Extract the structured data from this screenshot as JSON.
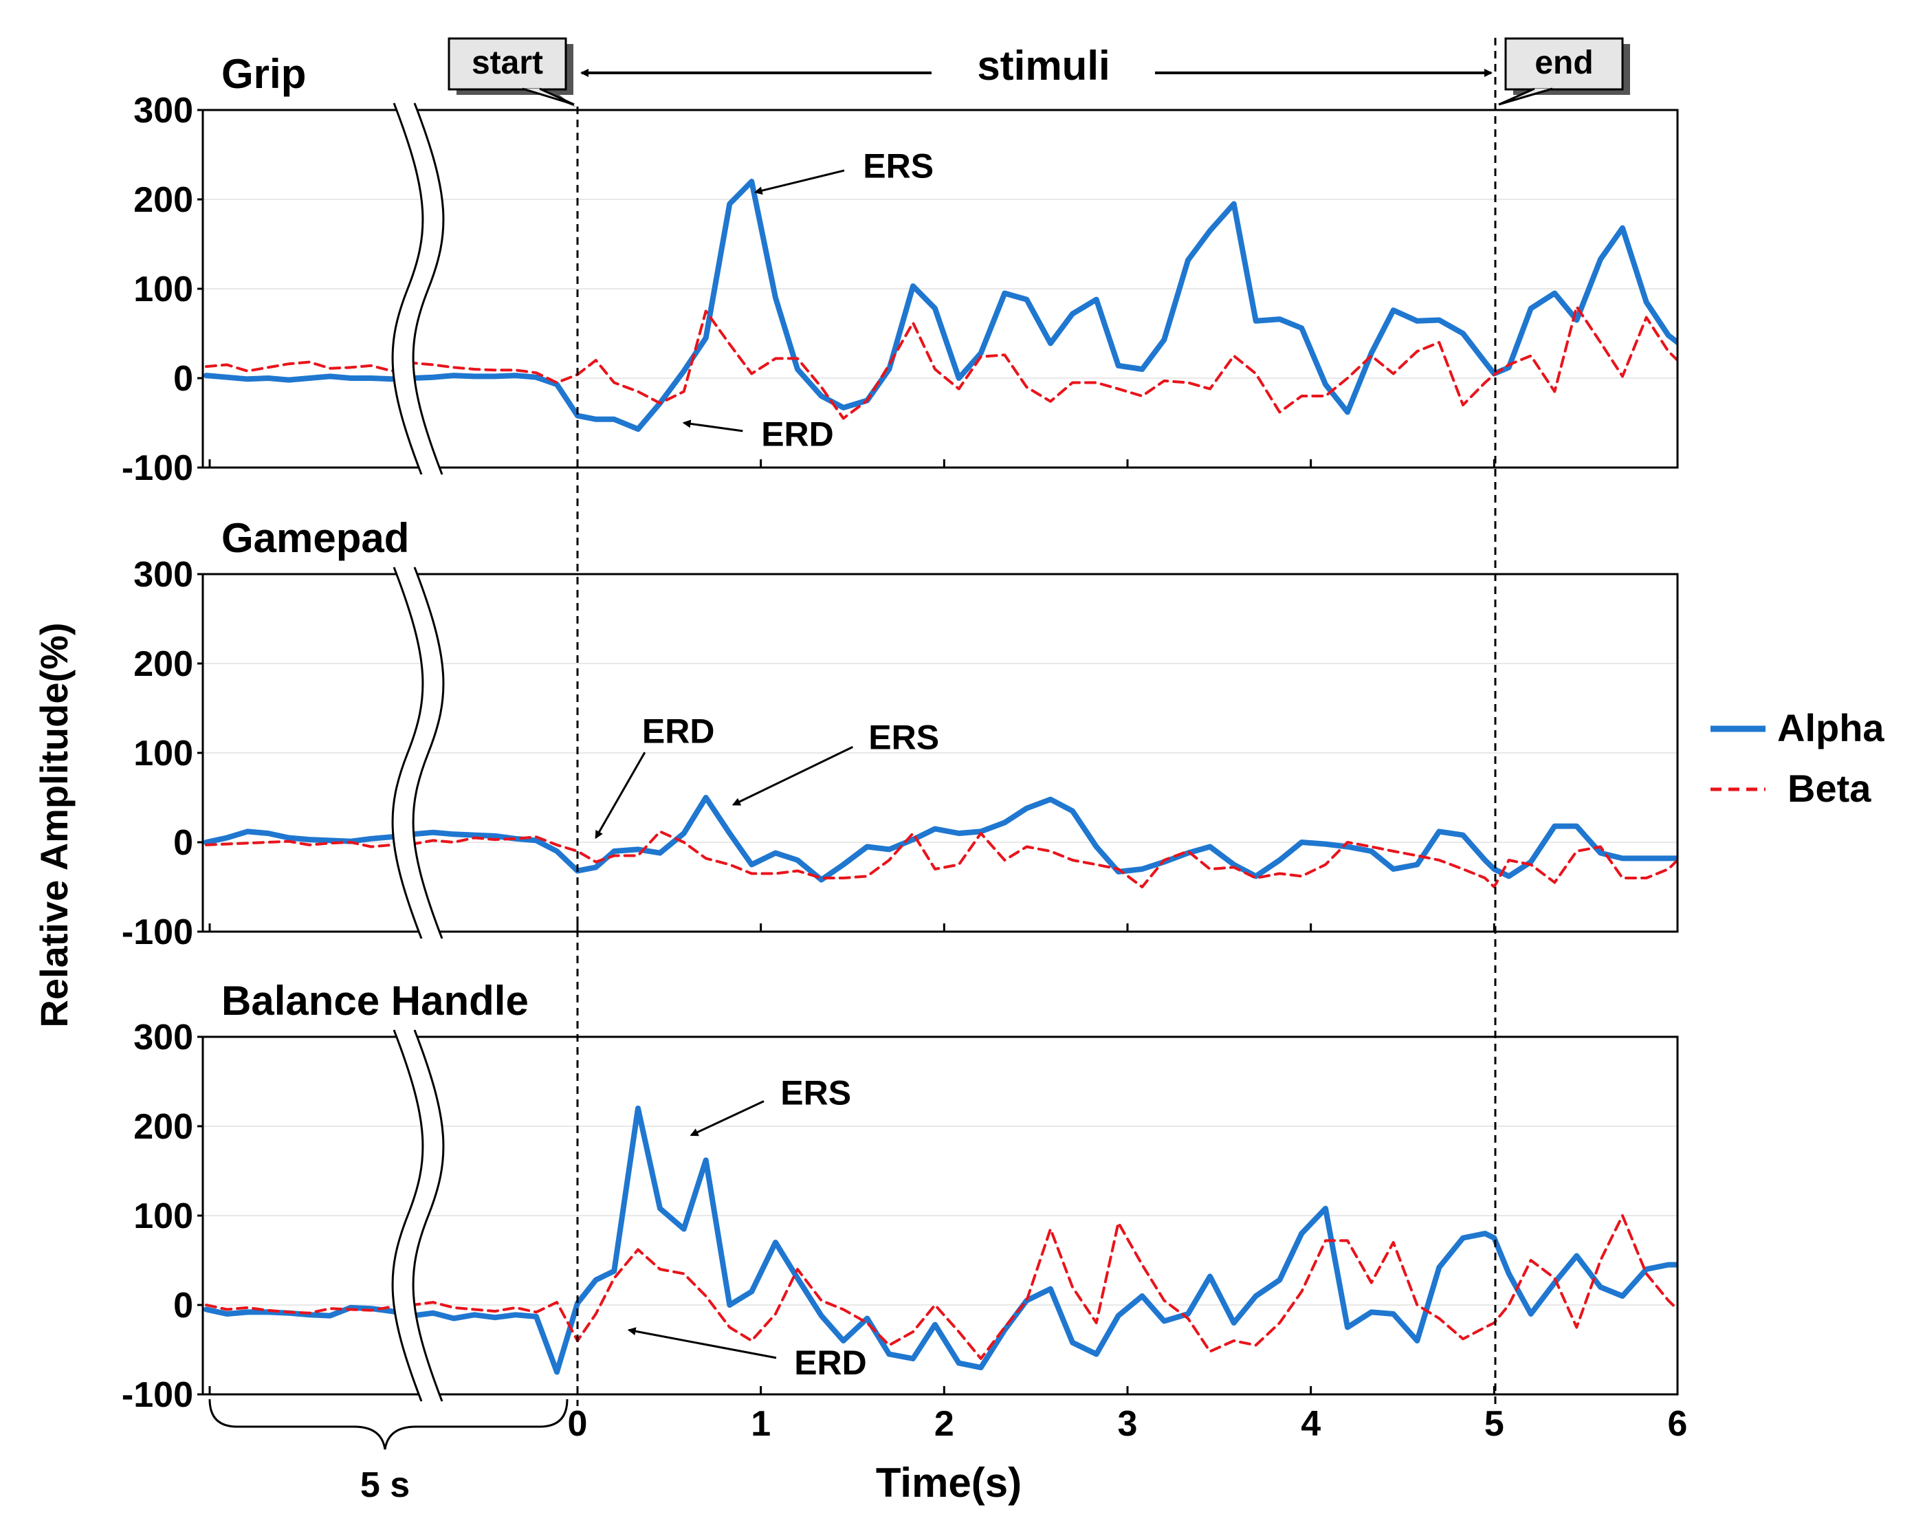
{
  "chart_data": {
    "type": "line",
    "ylabel": "Relative Amplitude(%)",
    "xlabel": "Time(s)",
    "ylim": [
      -100,
      300
    ],
    "xlim": [
      0,
      6
    ],
    "y_ticks": [
      "300",
      "200",
      "100",
      "0",
      "-100"
    ],
    "x_ticks": [
      "0",
      "1",
      "2",
      "3",
      "4",
      "5",
      "6"
    ],
    "baseline_label": "5 s",
    "events": {
      "start_label": "start",
      "end_label": "end",
      "stimuli_label": "stimuli",
      "start_time": 0,
      "end_time": 5
    },
    "legend": [
      {
        "name": "Alpha",
        "color": "#1f77d0",
        "style": "solid"
      },
      {
        "name": "Beta",
        "color": "#e8141b",
        "style": "dashed"
      }
    ],
    "panels": [
      {
        "title": "Grip",
        "annotations": [
          {
            "label": "ERS",
            "text_t": 1.75,
            "text_v": 238,
            "tip_t": 0.97,
            "tip_v": 208
          },
          {
            "label": "ERD",
            "text_t": 1.2,
            "text_v": -62,
            "tip_t": 0.58,
            "tip_v": -50
          }
        ],
        "series": [
          {
            "name": "Alpha",
            "baseline": [
              3,
              1,
              -1,
              0,
              -2,
              0,
              2,
              0,
              0,
              -1,
              0,
              1,
              3,
              2,
              2,
              3,
              1,
              -7
            ],
            "x": [
              0,
              0.1,
              0.2,
              0.33,
              0.45,
              0.58,
              0.7,
              0.83,
              0.95,
              1.08,
              1.2,
              1.33,
              1.45,
              1.58,
              1.7,
              1.83,
              1.95,
              2.08,
              2.2,
              2.33,
              2.45,
              2.58,
              2.7,
              2.83,
              2.95,
              3.08,
              3.2,
              3.33,
              3.45,
              3.58,
              3.7,
              3.83,
              3.95,
              4.08,
              4.2,
              4.33,
              4.45,
              4.58,
              4.7,
              4.83,
              4.95,
              5.0,
              5.08,
              5.2,
              5.33,
              5.45,
              5.58,
              5.7,
              5.83,
              5.95,
              6.0
            ],
            "values": [
              -42,
              -46,
              -46,
              -57,
              -28,
              8,
              45,
              195,
              220,
              90,
              10,
              -20,
              -33,
              -25,
              10,
              103,
              78,
              0,
              28,
              95,
              88,
              39,
              72,
              88,
              14,
              10,
              43,
              132,
              165,
              195,
              64,
              66,
              56,
              -7,
              -38,
              28,
              76,
              64,
              65,
              50,
              18,
              5,
              12,
              78,
              95,
              65,
              133,
              168,
              85,
              48,
              40
            ]
          },
          {
            "name": "Beta",
            "baseline": [
              13,
              15,
              8,
              12,
              16,
              18,
              11,
              12,
              14,
              8,
              17,
              15,
              12,
              10,
              9,
              9,
              6,
              -5
            ],
            "x": [
              0,
              0.1,
              0.2,
              0.33,
              0.45,
              0.58,
              0.7,
              0.83,
              0.95,
              1.08,
              1.2,
              1.33,
              1.45,
              1.58,
              1.7,
              1.83,
              1.95,
              2.08,
              2.2,
              2.33,
              2.45,
              2.58,
              2.7,
              2.83,
              2.95,
              3.08,
              3.2,
              3.33,
              3.45,
              3.58,
              3.7,
              3.83,
              3.95,
              4.08,
              4.2,
              4.33,
              4.45,
              4.58,
              4.7,
              4.83,
              4.95,
              5.0,
              5.08,
              5.2,
              5.33,
              5.45,
              5.58,
              5.7,
              5.83,
              5.95,
              6.0
            ],
            "values": [
              4,
              20,
              -5,
              -15,
              -28,
              -15,
              75,
              38,
              5,
              22,
              22,
              -10,
              -45,
              -25,
              15,
              62,
              10,
              -12,
              24,
              26,
              -10,
              -26,
              -5,
              -5,
              -12,
              -20,
              -3,
              -5,
              -12,
              25,
              5,
              -38,
              -20,
              -20,
              0,
              25,
              5,
              30,
              40,
              -30,
              -5,
              4,
              15,
              25,
              -15,
              80,
              40,
              2,
              68,
              30,
              20
            ]
          }
        ]
      },
      {
        "title": "Gamepad",
        "annotations": [
          {
            "label": "ERD",
            "text_t": 0.55,
            "text_v": 125,
            "tip_t": 0.1,
            "tip_v": 5
          },
          {
            "label": "ERS",
            "text_t": 1.78,
            "text_v": 118,
            "tip_t": 0.85,
            "tip_v": 42
          }
        ],
        "series": [
          {
            "name": "Alpha",
            "baseline": [
              0,
              5,
              12,
              10,
              5,
              3,
              2,
              1,
              4,
              6,
              9,
              11,
              9,
              8,
              7,
              4,
              2,
              -10
            ],
            "x": [
              0,
              0.1,
              0.2,
              0.33,
              0.45,
              0.58,
              0.7,
              0.83,
              0.95,
              1.08,
              1.2,
              1.33,
              1.45,
              1.58,
              1.7,
              1.83,
              1.95,
              2.08,
              2.2,
              2.33,
              2.45,
              2.58,
              2.7,
              2.83,
              2.95,
              3.08,
              3.2,
              3.33,
              3.45,
              3.58,
              3.7,
              3.83,
              3.95,
              4.08,
              4.2,
              4.33,
              4.45,
              4.58,
              4.7,
              4.83,
              4.95,
              5.0,
              5.08,
              5.2,
              5.33,
              5.45,
              5.58,
              5.7,
              5.83,
              5.95,
              6.0
            ],
            "values": [
              -32,
              -28,
              -10,
              -8,
              -12,
              10,
              50,
              10,
              -25,
              -12,
              -20,
              -42,
              -25,
              -5,
              -8,
              3,
              15,
              10,
              12,
              22,
              38,
              48,
              35,
              -5,
              -33,
              -30,
              -22,
              -12,
              -5,
              -25,
              -38,
              -20,
              0,
              -2,
              -5,
              -10,
              -30,
              -25,
              12,
              8,
              -20,
              -30,
              -38,
              -22,
              18,
              18,
              -12,
              -18,
              -18,
              -18,
              -18
            ]
          },
          {
            "name": "Beta",
            "baseline": [
              -3,
              -2,
              -1,
              0,
              1,
              -3,
              -1,
              0,
              -5,
              -3,
              -2,
              2,
              0,
              5,
              3,
              4,
              6,
              -3
            ],
            "x": [
              0,
              0.1,
              0.2,
              0.33,
              0.45,
              0.58,
              0.7,
              0.83,
              0.95,
              1.08,
              1.2,
              1.33,
              1.45,
              1.58,
              1.7,
              1.83,
              1.95,
              2.08,
              2.2,
              2.33,
              2.45,
              2.58,
              2.7,
              2.83,
              2.95,
              3.08,
              3.2,
              3.33,
              3.45,
              3.58,
              3.7,
              3.83,
              3.95,
              4.08,
              4.2,
              4.33,
              4.45,
              4.58,
              4.7,
              4.83,
              4.95,
              5.0,
              5.08,
              5.2,
              5.33,
              5.45,
              5.58,
              5.7,
              5.83,
              5.95,
              6.0
            ],
            "values": [
              -10,
              -22,
              -15,
              -15,
              12,
              0,
              -18,
              -25,
              -35,
              -35,
              -32,
              -40,
              -40,
              -38,
              -20,
              10,
              -30,
              -25,
              10,
              -20,
              -5,
              -10,
              -20,
              -25,
              -30,
              -50,
              -20,
              -10,
              -30,
              -28,
              -40,
              -35,
              -38,
              -25,
              0,
              -5,
              -10,
              -15,
              -20,
              -30,
              -40,
              -50,
              -20,
              -25,
              -45,
              -10,
              -5,
              -40,
              -40,
              -30,
              -20
            ]
          }
        ]
      },
      {
        "title": "Balance Handle",
        "annotations": [
          {
            "label": "ERS",
            "text_t": 1.3,
            "text_v": 238,
            "tip_t": 0.62,
            "tip_v": 190
          },
          {
            "label": "ERD",
            "text_t": 1.38,
            "text_v": -64,
            "tip_t": 0.28,
            "tip_v": -28
          }
        ],
        "series": [
          {
            "name": "Alpha",
            "baseline": [
              -5,
              -10,
              -8,
              -8,
              -9,
              -11,
              -12,
              -3,
              -4,
              -7,
              -12,
              -9,
              -15,
              -11,
              -14,
              -11,
              -13,
              -75
            ],
            "x": [
              0,
              0.1,
              0.2,
              0.33,
              0.45,
              0.58,
              0.7,
              0.83,
              0.95,
              1.08,
              1.2,
              1.33,
              1.45,
              1.58,
              1.7,
              1.83,
              1.95,
              2.08,
              2.2,
              2.33,
              2.45,
              2.58,
              2.7,
              2.83,
              2.95,
              3.08,
              3.2,
              3.33,
              3.45,
              3.58,
              3.7,
              3.83,
              3.95,
              4.08,
              4.2,
              4.33,
              4.45,
              4.58,
              4.7,
              4.83,
              4.95,
              5.0,
              5.08,
              5.2,
              5.33,
              5.45,
              5.58,
              5.7,
              5.83,
              5.95,
              6.0
            ],
            "values": [
              2,
              28,
              38,
              220,
              108,
              85,
              162,
              0,
              15,
              70,
              30,
              -12,
              -40,
              -15,
              -55,
              -60,
              -22,
              -65,
              -70,
              -28,
              5,
              18,
              -42,
              -55,
              -12,
              10,
              -18,
              -10,
              32,
              -20,
              10,
              28,
              80,
              108,
              -25,
              -8,
              -10,
              -40,
              42,
              75,
              80,
              75,
              35,
              -10,
              25,
              55,
              20,
              10,
              40,
              45,
              45
            ]
          },
          {
            "name": "Beta",
            "baseline": [
              0,
              -5,
              -3,
              -6,
              -8,
              -9,
              -4,
              -5,
              -6,
              -2,
              0,
              3,
              -3,
              -5,
              -7,
              -3,
              -8,
              3
            ],
            "x": [
              0,
              0.1,
              0.2,
              0.33,
              0.45,
              0.58,
              0.7,
              0.83,
              0.95,
              1.08,
              1.2,
              1.33,
              1.45,
              1.58,
              1.7,
              1.83,
              1.95,
              2.08,
              2.2,
              2.33,
              2.45,
              2.58,
              2.7,
              2.83,
              2.95,
              3.08,
              3.2,
              3.33,
              3.45,
              3.58,
              3.7,
              3.83,
              3.95,
              4.08,
              4.2,
              4.33,
              4.45,
              4.58,
              4.7,
              4.83,
              4.95,
              5.0,
              5.08,
              5.2,
              5.33,
              5.45,
              5.58,
              5.7,
              5.83,
              5.95,
              6.0
            ],
            "values": [
              -40,
              -10,
              30,
              62,
              40,
              35,
              10,
              -25,
              -40,
              -10,
              40,
              5,
              -5,
              -20,
              -45,
              -30,
              0,
              -30,
              -60,
              -25,
              5,
              85,
              20,
              -20,
              92,
              45,
              5,
              -15,
              -52,
              -40,
              -45,
              -20,
              15,
              72,
              72,
              25,
              70,
              0,
              -15,
              -38,
              -25,
              -20,
              0,
              50,
              30,
              -25,
              50,
              100,
              35,
              5,
              -5
            ]
          }
        ]
      }
    ]
  }
}
